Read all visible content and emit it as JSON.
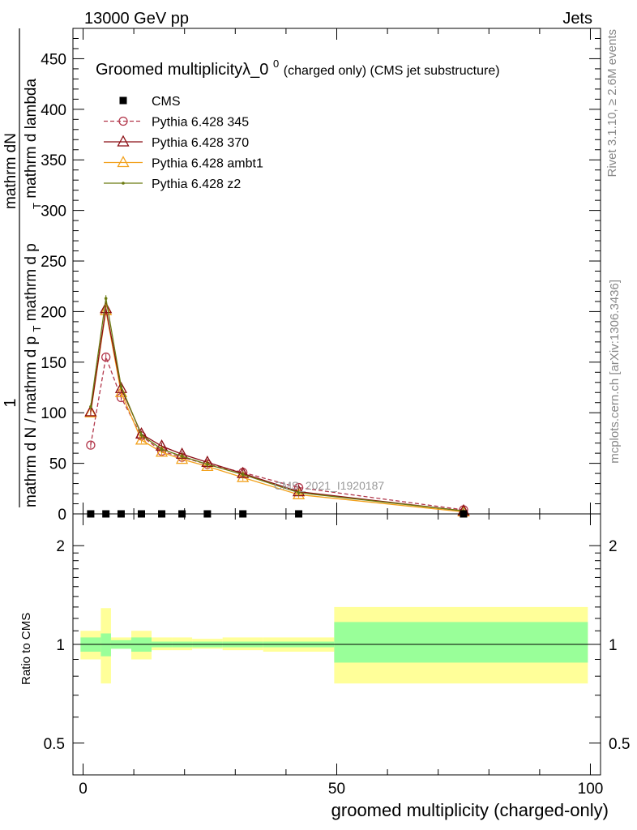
{
  "header": {
    "left": "13000 GeV pp",
    "right": "Jets"
  },
  "side_labels": {
    "rivet": "Rivet 3.1.10, ≥ 2.6M events",
    "mcplots": "mcplots.cern.ch [arXiv:1306.3436]"
  },
  "title": {
    "main": "Groomed multiplicityλ_0",
    "sup": "0",
    "tail": " (charged only) (CMS jet substructure)"
  },
  "watermark": "CMS_2021_I1920187",
  "ylabel": {
    "top_one": "1",
    "top_dn": "mathrm dN",
    "bottom": "mathrm d N / mathrm d p",
    "bottom_tail": "mathrm d p",
    "sub_t": "T",
    "lambda_tail": " mathrm d lambda"
  },
  "xlabel": "groomed multiplicity (charged-only)",
  "ratio_ylabel": "Ratio to CMS",
  "colors": {
    "cms": "#000000",
    "p345": "#b2374b",
    "p370": "#8b0e14",
    "ambt1": "#f2a11c",
    "z2": "#6b7a10",
    "band_inner": "#99ff99",
    "band_outer": "#ffff99"
  },
  "chart_data": [
    {
      "type": "line",
      "panel": "main",
      "xlim": [
        -2,
        102
      ],
      "ylim": [
        0,
        480
      ],
      "yticks": [
        0,
        50,
        100,
        150,
        200,
        250,
        300,
        350,
        400,
        450
      ],
      "legend_position": "top-left",
      "series": [
        {
          "name": "CMS",
          "marker": "square",
          "x": [
            1.5,
            4.5,
            7.5,
            11.5,
            15.5,
            19.5,
            24.5,
            31.5,
            42.5,
            75
          ],
          "y": [
            0,
            0,
            0,
            0,
            0,
            0,
            0,
            0,
            0,
            0
          ]
        },
        {
          "name": "Pythia 6.428 345",
          "marker": "circle",
          "dashed": true,
          "x": [
            1.5,
            4.5,
            7.5,
            11.5,
            15.5,
            19.5,
            24.5,
            31.5,
            42.5,
            75
          ],
          "y": [
            68,
            155,
            115,
            77,
            62,
            56,
            49,
            41,
            26,
            4
          ]
        },
        {
          "name": "Pythia 6.428 370",
          "marker": "triangle",
          "x": [
            1.5,
            4.5,
            7.5,
            11.5,
            15.5,
            19.5,
            24.5,
            31.5,
            42.5,
            75
          ],
          "y": [
            101,
            203,
            124,
            79,
            67,
            59,
            51,
            40,
            22,
            3
          ]
        },
        {
          "name": "Pythia 6.428 ambt1",
          "marker": "triangle",
          "x": [
            1.5,
            4.5,
            7.5,
            11.5,
            15.5,
            19.5,
            24.5,
            31.5,
            42.5,
            75
          ],
          "y": [
            100,
            201,
            120,
            73,
            61,
            54,
            47,
            36,
            19,
            2
          ]
        },
        {
          "name": "Pythia 6.428 z2",
          "marker": "dot",
          "x": [
            1.5,
            4.5,
            7.5,
            11.5,
            15.5,
            19.5,
            24.5,
            31.5,
            42.5,
            75
          ],
          "y": [
            106,
            213,
            126,
            78,
            64,
            57,
            49,
            39,
            21,
            3
          ]
        }
      ]
    },
    {
      "type": "area",
      "panel": "ratio",
      "log_y": true,
      "ylim": [
        0.4,
        2.5
      ],
      "yticks": [
        0.5,
        1,
        2
      ],
      "xticks": [
        0,
        50,
        100
      ],
      "bin_edges": [
        -0.5,
        3.5,
        5.5,
        9.5,
        13.5,
        17.5,
        21.5,
        27.5,
        35.5,
        49.5,
        99.5
      ],
      "inner_lo": [
        0.95,
        0.92,
        0.97,
        0.95,
        0.98,
        0.98,
        0.98,
        0.98,
        0.98,
        0.88
      ],
      "inner_hi": [
        1.05,
        1.08,
        1.03,
        1.05,
        1.02,
        1.02,
        1.02,
        1.02,
        1.02,
        1.17
      ],
      "outer_lo": [
        0.9,
        0.76,
        0.97,
        0.9,
        0.96,
        0.96,
        0.97,
        0.96,
        0.95,
        0.76
      ],
      "outer_hi": [
        1.1,
        1.29,
        1.05,
        1.1,
        1.05,
        1.05,
        1.04,
        1.05,
        1.05,
        1.3
      ],
      "reference": 1
    }
  ]
}
